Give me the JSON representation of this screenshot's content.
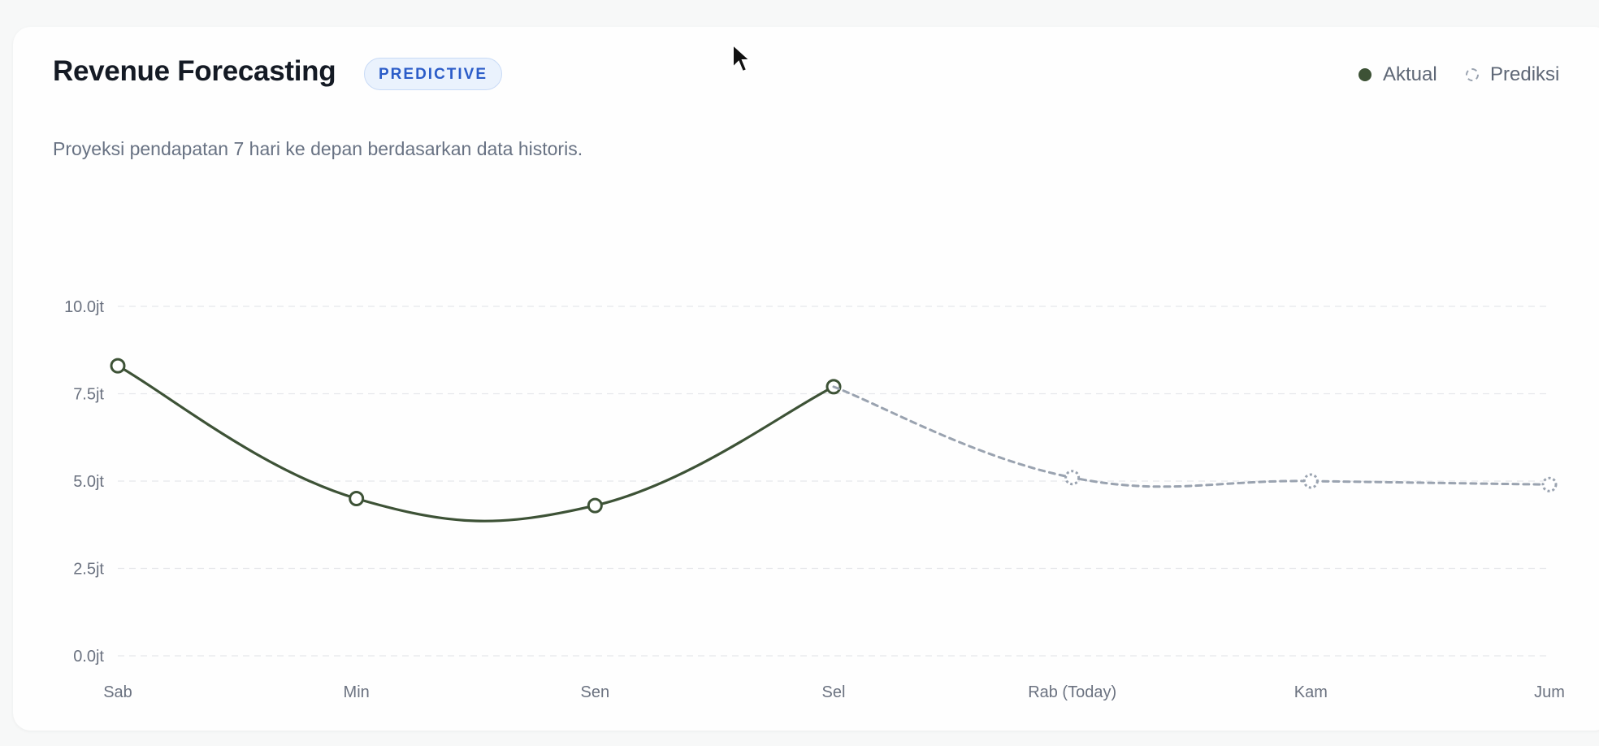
{
  "card": {
    "title": "Revenue Forecasting",
    "badge": "PREDICTIVE",
    "subtitle": "Proyeksi pendapatan 7 hari ke depan berdasarkan data historis."
  },
  "legend": {
    "actual_label": "Aktual",
    "prediction_label": "Prediksi"
  },
  "colors": {
    "actual": "#3d5236",
    "prediction": "#9aa3b0",
    "grid": "#e6e8eb",
    "badge_text": "#2b5cc8"
  },
  "chart_data": {
    "type": "line",
    "categories": [
      "Sab",
      "Min",
      "Sen",
      "Sel",
      "Rab (Today)",
      "Kam",
      "Jum"
    ],
    "series": [
      {
        "name": "Aktual",
        "style": "solid",
        "values": [
          8.3,
          4.5,
          4.3,
          7.7,
          null,
          null,
          null
        ]
      },
      {
        "name": "Prediksi",
        "style": "dashed",
        "values": [
          null,
          null,
          null,
          7.7,
          5.1,
          5.0,
          4.9
        ]
      }
    ],
    "y_ticks": [
      "0.0jt",
      "2.5jt",
      "5.0jt",
      "7.5jt",
      "10.0jt"
    ],
    "y_tick_values": [
      0,
      2.5,
      5,
      7.5,
      10
    ],
    "ylim": [
      0,
      10
    ],
    "y_unit": "jt",
    "grid": true,
    "legend_position": "top-right"
  }
}
